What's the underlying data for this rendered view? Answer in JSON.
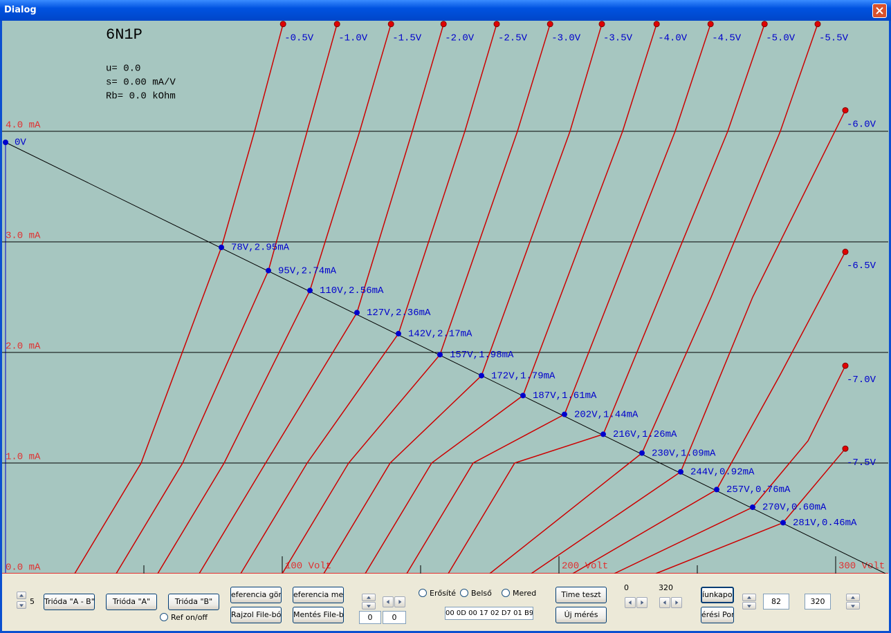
{
  "window": {
    "title": "Dialog"
  },
  "chart": {
    "type": "line",
    "tube": "6N1P",
    "info": [
      "u= 0.0",
      "s= 0.00 mA/V",
      "Rb= 0.0 kOhm"
    ],
    "xlim": [
      0,
      319
    ],
    "ylim": [
      0,
      5
    ],
    "yticks": [
      {
        "value": 0,
        "label": "0.0 mA"
      },
      {
        "value": 1,
        "label": "1.0 mA"
      },
      {
        "value": 2,
        "label": "2.0 mA"
      },
      {
        "value": 3,
        "label": "3.0 mA"
      },
      {
        "value": 4,
        "label": "4.0 mA"
      }
    ],
    "xticks": [
      {
        "value": 100,
        "label": "100 Volt"
      },
      {
        "value": 200,
        "label": "200 Volt"
      },
      {
        "value": 300,
        "label": "300 Volt"
      }
    ],
    "minor_xticks": [
      50,
      150,
      250
    ],
    "grid": true,
    "curve_color": "#cc0000",
    "point_color": "#0000cc",
    "curves": [
      {
        "name": "-0.5V",
        "x": [
          25,
          49,
          78,
          90,
          100.3
        ],
        "y": [
          0,
          1,
          2.95,
          4,
          4.97
        ]
      },
      {
        "name": "-1.0V",
        "x": [
          40,
          64,
          95,
          109,
          119.8
        ],
        "y": [
          0,
          1,
          2.74,
          4,
          4.97
        ]
      },
      {
        "name": "-1.5V",
        "x": [
          55,
          79,
          110,
          128,
          139.3
        ],
        "y": [
          0,
          1,
          2.56,
          4,
          4.97
        ]
      },
      {
        "name": "-2.0V",
        "x": [
          70,
          94,
          127,
          147,
          158.3
        ],
        "y": [
          0,
          1,
          2.36,
          4,
          4.97
        ]
      },
      {
        "name": "-2.5V",
        "x": [
          85,
          109,
          142,
          166,
          177.5
        ],
        "y": [
          0,
          1,
          2.17,
          4,
          4.97
        ]
      },
      {
        "name": "-3.0V",
        "x": [
          100,
          124,
          157,
          185,
          196.8
        ],
        "y": [
          0,
          1,
          1.98,
          4,
          4.97
        ]
      },
      {
        "name": "-3.5V",
        "x": [
          115,
          139,
          172,
          204,
          215.5
        ],
        "y": [
          0,
          1,
          1.79,
          4,
          4.97
        ]
      },
      {
        "name": "-4.0V",
        "x": [
          130,
          154,
          187,
          223,
          235.3
        ],
        "y": [
          0,
          1,
          1.61,
          4,
          4.97
        ]
      },
      {
        "name": "-4.5V",
        "x": [
          145,
          169,
          202,
          242,
          254.8
        ],
        "y": [
          0,
          1,
          1.44,
          4,
          4.97
        ]
      },
      {
        "name": "-5.0V",
        "x": [
          160,
          184,
          216,
          261,
          274.3
        ],
        "y": [
          0,
          1,
          1.26,
          4,
          4.97
        ]
      },
      {
        "name": "-5.5V",
        "x": [
          175,
          230,
          255,
          280,
          293.5
        ],
        "y": [
          0,
          1.09,
          2.5,
          4,
          4.97
        ]
      },
      {
        "name": "-6.0V",
        "x": [
          190,
          244,
          270,
          303.5
        ],
        "y": [
          0,
          0.92,
          2.5,
          4.19
        ]
      },
      {
        "name": "-6.5V",
        "x": [
          205,
          257,
          280,
          303.5
        ],
        "y": [
          0,
          0.76,
          1.8,
          2.91
        ]
      },
      {
        "name": "-7.0V",
        "x": [
          220,
          270,
          290,
          303.5
        ],
        "y": [
          0,
          0.6,
          1.2,
          1.88
        ]
      },
      {
        "name": "-7.5V",
        "x": [
          235,
          281,
          303.5
        ],
        "y": [
          0,
          0.46,
          1.13
        ]
      }
    ],
    "load_line": {
      "label": "0V",
      "x": [
        0,
        318
      ],
      "y": [
        3.9,
        0
      ]
    },
    "points": [
      {
        "x": 78,
        "y": 2.95,
        "label": "78V,2.95mA"
      },
      {
        "x": 95,
        "y": 2.74,
        "label": "95V,2.74mA"
      },
      {
        "x": 110,
        "y": 2.56,
        "label": "110V,2.56mA"
      },
      {
        "x": 127,
        "y": 2.36,
        "label": "127V,2.36mA"
      },
      {
        "x": 142,
        "y": 2.17,
        "label": "142V,2.17mA"
      },
      {
        "x": 157,
        "y": 1.98,
        "label": "157V,1.98mA"
      },
      {
        "x": 172,
        "y": 1.79,
        "label": "172V,1.79mA"
      },
      {
        "x": 187,
        "y": 1.61,
        "label": "187V,1.61mA"
      },
      {
        "x": 202,
        "y": 1.44,
        "label": "202V,1.44mA"
      },
      {
        "x": 216,
        "y": 1.26,
        "label": "216V,1.26mA"
      },
      {
        "x": 230,
        "y": 1.09,
        "label": "230V,1.09mA"
      },
      {
        "x": 244,
        "y": 0.92,
        "label": "244V,0.92mA"
      },
      {
        "x": 257,
        "y": 0.76,
        "label": "257V,0.76mA"
      },
      {
        "x": 270,
        "y": 0.6,
        "label": "270V,0.60mA"
      },
      {
        "x": 281,
        "y": 0.46,
        "label": "281V,0.46mA"
      }
    ]
  },
  "controls": {
    "counter": "5",
    "trioda_ab": "Trióda \"A - B\"",
    "trioda_a": "Trióda  \"A\"",
    "trioda_b": "Trióda  \"B\"",
    "ref_onoff": "Ref on/off",
    "ref_curve": "eferencia görb",
    "ref_save": "eferencia ment",
    "draw_file": "Rajzol File-ból",
    "save_file": "Mentés File-ba",
    "edit_left_1": "0",
    "edit_left_2": "0",
    "radio_gain": "Erősíté",
    "radio_internal": "Belső e",
    "radio_slope": "Merede",
    "hex": "00 0D 00 17 02 D7 01 B9",
    "time_test": "Time teszt",
    "new_measure": "Új mérés",
    "range_min": "0",
    "range_max": "320",
    "work_point": "íunkapon",
    "measure_point": "érési Pont",
    "edit_right_1": "82",
    "edit_right_2": "320"
  }
}
